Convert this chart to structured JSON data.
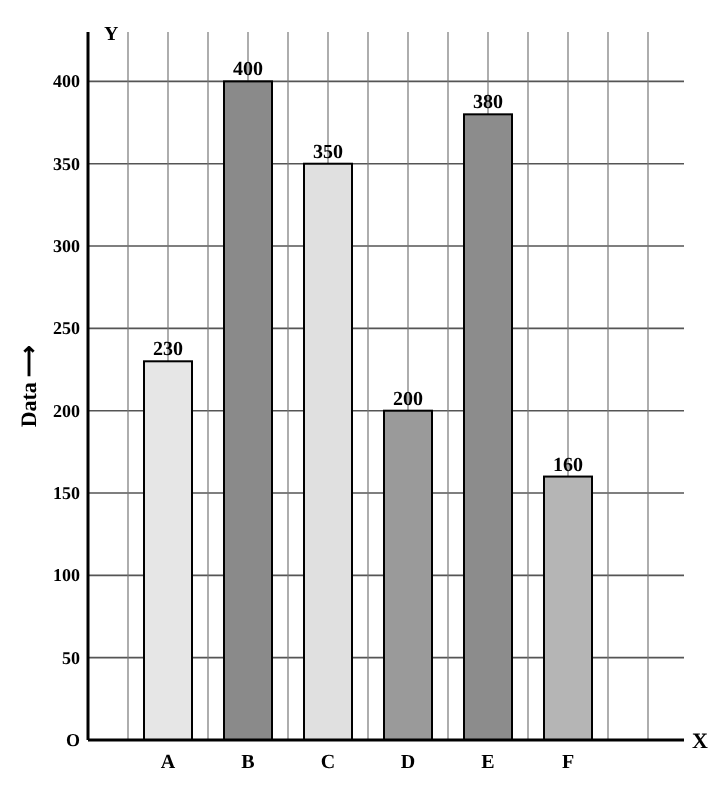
{
  "chart_data": {
    "type": "bar",
    "xlabel": "X",
    "ylabel": "Data ⟶",
    "annotations": [
      "Y"
    ],
    "categories": [
      "A",
      "B",
      "C",
      "D",
      "E",
      "F"
    ],
    "values": [
      230,
      400,
      350,
      200,
      380,
      160
    ],
    "colors": [
      "#e6e6e6",
      "#8a8a8a",
      "#e0e0e0",
      "#9a9a9a",
      "#8c8c8c",
      "#b5b5b5"
    ],
    "ylim": [
      0,
      430
    ],
    "yticks": [
      {
        "value": 0,
        "label": "O"
      },
      50,
      100,
      150,
      200,
      250,
      300,
      350,
      400
    ],
    "grid": true,
    "data_labels": true
  }
}
